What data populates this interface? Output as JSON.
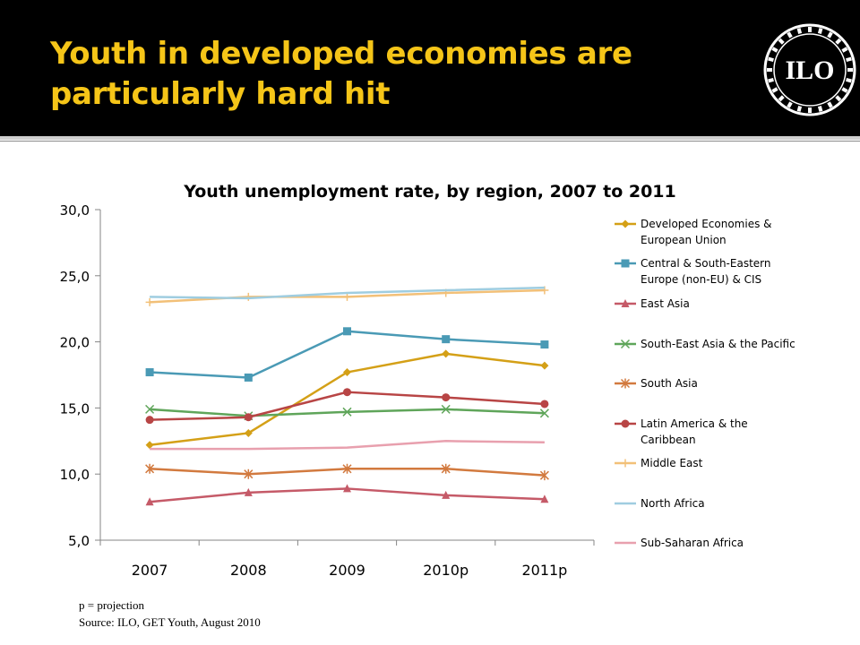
{
  "slide": {
    "title": "Youth in developed economies are particularly hard hit",
    "logo_text": "ILO",
    "colors": {
      "header_bg": "#000000",
      "title": "#f5c518"
    }
  },
  "footnotes": {
    "projection_note": "p = projection",
    "source": "Source: ILO, GET Youth, August 2010"
  },
  "chart_data": {
    "type": "line",
    "title": "Youth unemployment rate, by region, 2007 to 2011",
    "categories": [
      "2007",
      "2008",
      "2009",
      "2010p",
      "2011p"
    ],
    "yticks": [
      "5,0",
      "10,0",
      "15,0",
      "20,0",
      "25,0",
      "30,0"
    ],
    "ylim": [
      5,
      30
    ],
    "legend_position": "right",
    "grid": false,
    "series": [
      {
        "name": "Developed Economies & European Union",
        "legend_lines": [
          "Developed Economies &",
          "European Union"
        ],
        "values": [
          12.2,
          13.1,
          17.7,
          19.1,
          18.2
        ],
        "color": "#d4a017",
        "marker": "diamond"
      },
      {
        "name": "Central & South-Eastern Europe (non-EU) & CIS",
        "legend_lines": [
          "Central & South-Eastern",
          "Europe (non-EU) & CIS"
        ],
        "values": [
          17.7,
          17.3,
          20.8,
          20.2,
          19.8
        ],
        "color": "#4a9ab5",
        "marker": "square"
      },
      {
        "name": "East Asia",
        "legend_lines": [
          "East Asia"
        ],
        "values": [
          7.9,
          8.6,
          8.9,
          8.4,
          8.1
        ],
        "color": "#c55a68",
        "marker": "triangle"
      },
      {
        "name": "South-East Asia & the Pacific",
        "legend_lines": [
          "South-East Asia & the Pacific"
        ],
        "values": [
          14.9,
          14.4,
          14.7,
          14.9,
          14.6
        ],
        "color": "#5fa55a",
        "marker": "x"
      },
      {
        "name": "South Asia",
        "legend_lines": [
          "South Asia"
        ],
        "values": [
          10.4,
          10.0,
          10.4,
          10.4,
          9.9
        ],
        "color": "#d27a3f",
        "marker": "star"
      },
      {
        "name": "Latin America & the Caribbean",
        "legend_lines": [
          "Latin America & the",
          "Caribbean"
        ],
        "values": [
          14.1,
          14.3,
          16.2,
          15.8,
          15.3
        ],
        "color": "#b84545",
        "marker": "circle"
      },
      {
        "name": "Middle East",
        "legend_lines": [
          "Middle East"
        ],
        "values": [
          23.0,
          23.4,
          23.4,
          23.7,
          23.9
        ],
        "color": "#f2c078",
        "marker": "plus"
      },
      {
        "name": "North Africa",
        "legend_lines": [
          "North Africa"
        ],
        "values": [
          23.4,
          23.3,
          23.7,
          23.9,
          24.1
        ],
        "color": "#9fcde0",
        "marker": "none"
      },
      {
        "name": "Sub-Saharan Africa",
        "legend_lines": [
          "Sub-Saharan Africa"
        ],
        "values": [
          11.9,
          11.9,
          12.0,
          12.5,
          12.4
        ],
        "color": "#e8a0ae",
        "marker": "none"
      }
    ]
  }
}
